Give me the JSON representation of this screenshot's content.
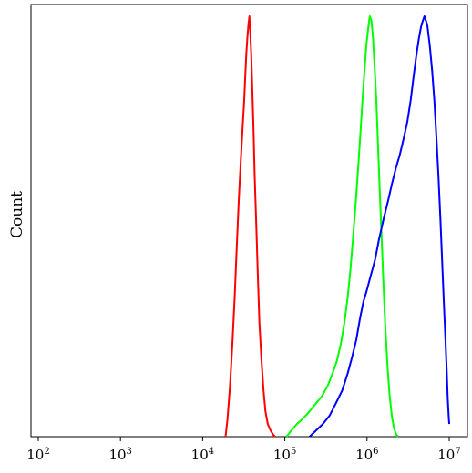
{
  "chart_data": {
    "type": "line",
    "title": "",
    "xlabel": "",
    "ylabel": "Count",
    "x_scale": "log",
    "xlim": [
      100,
      10000000
    ],
    "ylim": [
      0,
      100
    ],
    "grid": false,
    "legend": "none",
    "x_ticks": [
      {
        "value": 100,
        "base": "10",
        "exp": "2"
      },
      {
        "value": 1000,
        "base": "10",
        "exp": "3"
      },
      {
        "value": 10000,
        "base": "10",
        "exp": "4"
      },
      {
        "value": 100000,
        "base": "10",
        "exp": "5"
      },
      {
        "value": 1000000,
        "base": "10",
        "exp": "6"
      },
      {
        "value": 10000000,
        "base": "10",
        "exp": "7"
      }
    ],
    "series": [
      {
        "color": "#ff0000",
        "points": [
          [
            19000,
            0
          ],
          [
            20000,
            4
          ],
          [
            21500,
            12
          ],
          [
            23000,
            22
          ],
          [
            24500,
            33
          ],
          [
            26000,
            45
          ],
          [
            27500,
            56
          ],
          [
            29000,
            65
          ],
          [
            30500,
            73
          ],
          [
            32000,
            80
          ],
          [
            33000,
            86
          ],
          [
            34000,
            91
          ],
          [
            35000,
            95
          ],
          [
            36000,
            98
          ],
          [
            37000,
            100
          ],
          [
            38000,
            96
          ],
          [
            39000,
            91
          ],
          [
            40000,
            84
          ],
          [
            41500,
            74
          ],
          [
            43000,
            62
          ],
          [
            45000,
            50
          ],
          [
            47000,
            38
          ],
          [
            49000,
            27
          ],
          [
            52000,
            18
          ],
          [
            55000,
            11
          ],
          [
            58000,
            6
          ],
          [
            62000,
            3
          ],
          [
            67000,
            1.5
          ],
          [
            72000,
            0.5
          ],
          [
            76000,
            0
          ]
        ]
      },
      {
        "color": "#00ff00",
        "points": [
          [
            105000,
            0
          ],
          [
            120000,
            1.5
          ],
          [
            140000,
            3
          ],
          [
            160000,
            4
          ],
          [
            190000,
            5.5
          ],
          [
            230000,
            7.5
          ],
          [
            280000,
            9.5
          ],
          [
            330000,
            12
          ],
          [
            380000,
            15
          ],
          [
            430000,
            18
          ],
          [
            480000,
            22
          ],
          [
            530000,
            27
          ],
          [
            580000,
            33
          ],
          [
            630000,
            40
          ],
          [
            680000,
            48
          ],
          [
            730000,
            56
          ],
          [
            780000,
            64
          ],
          [
            830000,
            72
          ],
          [
            880000,
            80
          ],
          [
            930000,
            87
          ],
          [
            980000,
            93
          ],
          [
            1030000,
            97
          ],
          [
            1080000,
            100
          ],
          [
            1130000,
            99
          ],
          [
            1180000,
            95
          ],
          [
            1230000,
            89
          ],
          [
            1290000,
            81
          ],
          [
            1350000,
            71
          ],
          [
            1420000,
            60
          ],
          [
            1500000,
            48
          ],
          [
            1580000,
            37
          ],
          [
            1670000,
            26
          ],
          [
            1770000,
            17
          ],
          [
            1880000,
            10
          ],
          [
            2000000,
            5
          ],
          [
            2130000,
            2
          ],
          [
            2270000,
            0.5
          ],
          [
            2400000,
            0
          ]
        ]
      },
      {
        "color": "#0000ff",
        "points": [
          [
            200000,
            0
          ],
          [
            240000,
            1.5
          ],
          [
            290000,
            3
          ],
          [
            350000,
            5
          ],
          [
            420000,
            8
          ],
          [
            500000,
            11
          ],
          [
            580000,
            15
          ],
          [
            660000,
            19
          ],
          [
            740000,
            23
          ],
          [
            820000,
            28
          ],
          [
            900000,
            32
          ],
          [
            1000000,
            35
          ],
          [
            1100000,
            38
          ],
          [
            1250000,
            42
          ],
          [
            1400000,
            47
          ],
          [
            1600000,
            52
          ],
          [
            1800000,
            56
          ],
          [
            2000000,
            60
          ],
          [
            2250000,
            64
          ],
          [
            2500000,
            67
          ],
          [
            2800000,
            71
          ],
          [
            3100000,
            75
          ],
          [
            3400000,
            80
          ],
          [
            3700000,
            86
          ],
          [
            4000000,
            91
          ],
          [
            4300000,
            95
          ],
          [
            4600000,
            98
          ],
          [
            5000000,
            100
          ],
          [
            5400000,
            98
          ],
          [
            5800000,
            93
          ],
          [
            6200000,
            87
          ],
          [
            6600000,
            80
          ],
          [
            7000000,
            71
          ],
          [
            7400000,
            62
          ],
          [
            7800000,
            52
          ],
          [
            8200000,
            42
          ],
          [
            8600000,
            32
          ],
          [
            9000000,
            23
          ],
          [
            9300000,
            16
          ],
          [
            9600000,
            9
          ],
          [
            9850000,
            5
          ],
          [
            10000000,
            3
          ]
        ]
      }
    ]
  }
}
